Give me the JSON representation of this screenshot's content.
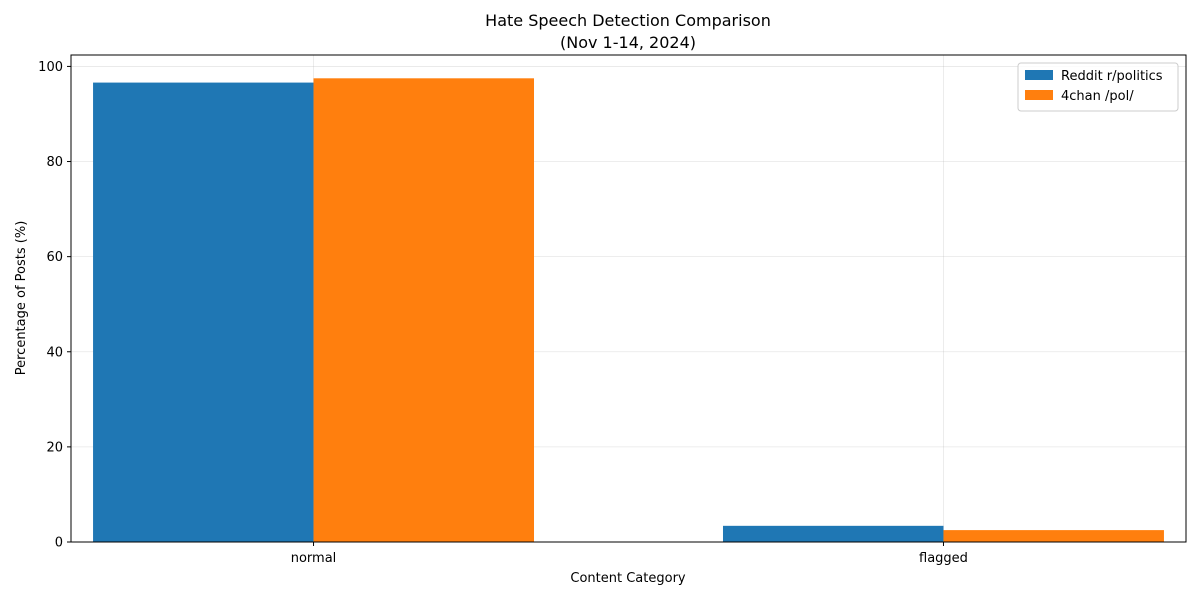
{
  "chart_data": {
    "type": "bar",
    "title": "Hate Speech Detection Comparison",
    "subtitle": "(Nov 1-14, 2024)",
    "xlabel": "Content Category",
    "ylabel": "Percentage of Posts (%)",
    "categories": [
      "normal",
      "flagged"
    ],
    "series": [
      {
        "name": "Reddit r/politics",
        "color": "#1f77b4",
        "values": [
          96.6,
          3.4
        ]
      },
      {
        "name": "4chan /pol/",
        "color": "#ff7f0e",
        "values": [
          97.5,
          2.5
        ]
      }
    ],
    "ylim": [
      0,
      102.4
    ],
    "yticks": [
      0,
      20,
      40,
      60,
      80,
      100
    ],
    "grid": true,
    "legend_position": "top-right"
  }
}
